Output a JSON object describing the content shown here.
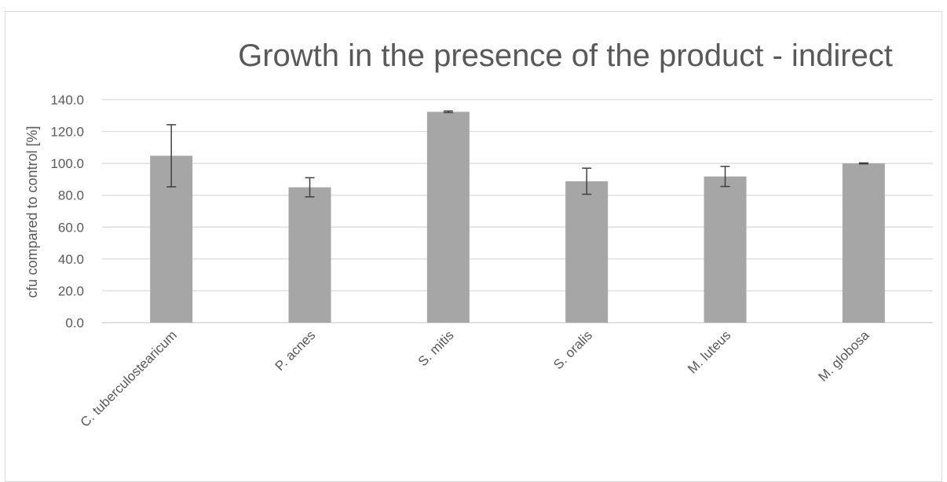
{
  "chart_data": {
    "type": "bar",
    "title": "Growth in the presence of the product - indirect",
    "xlabel": "",
    "ylabel": "cfu compared to control [%]",
    "categories": [
      "C. tuberculostearicum",
      "P. acnes",
      "S. mitis",
      "S. oralis",
      "M. luteus",
      "M. globosa"
    ],
    "series": [
      {
        "values": [
          104.8,
          85.0,
          132.4,
          88.8,
          91.8,
          100.0
        ],
        "error": [
          19.5,
          6.0,
          0.5,
          8.2,
          6.3,
          0.3
        ]
      }
    ],
    "ylim": [
      0,
      140
    ],
    "yticks": [
      "0.0",
      "20.0",
      "40.0",
      "60.0",
      "80.0",
      "100.0",
      "120.0",
      "140.0"
    ],
    "grid": true,
    "legend": "none",
    "colors": {
      "bar": "#a6a6a6",
      "grid": "#d9d9d9",
      "text": "#595959",
      "error_bar": "#404040"
    }
  }
}
